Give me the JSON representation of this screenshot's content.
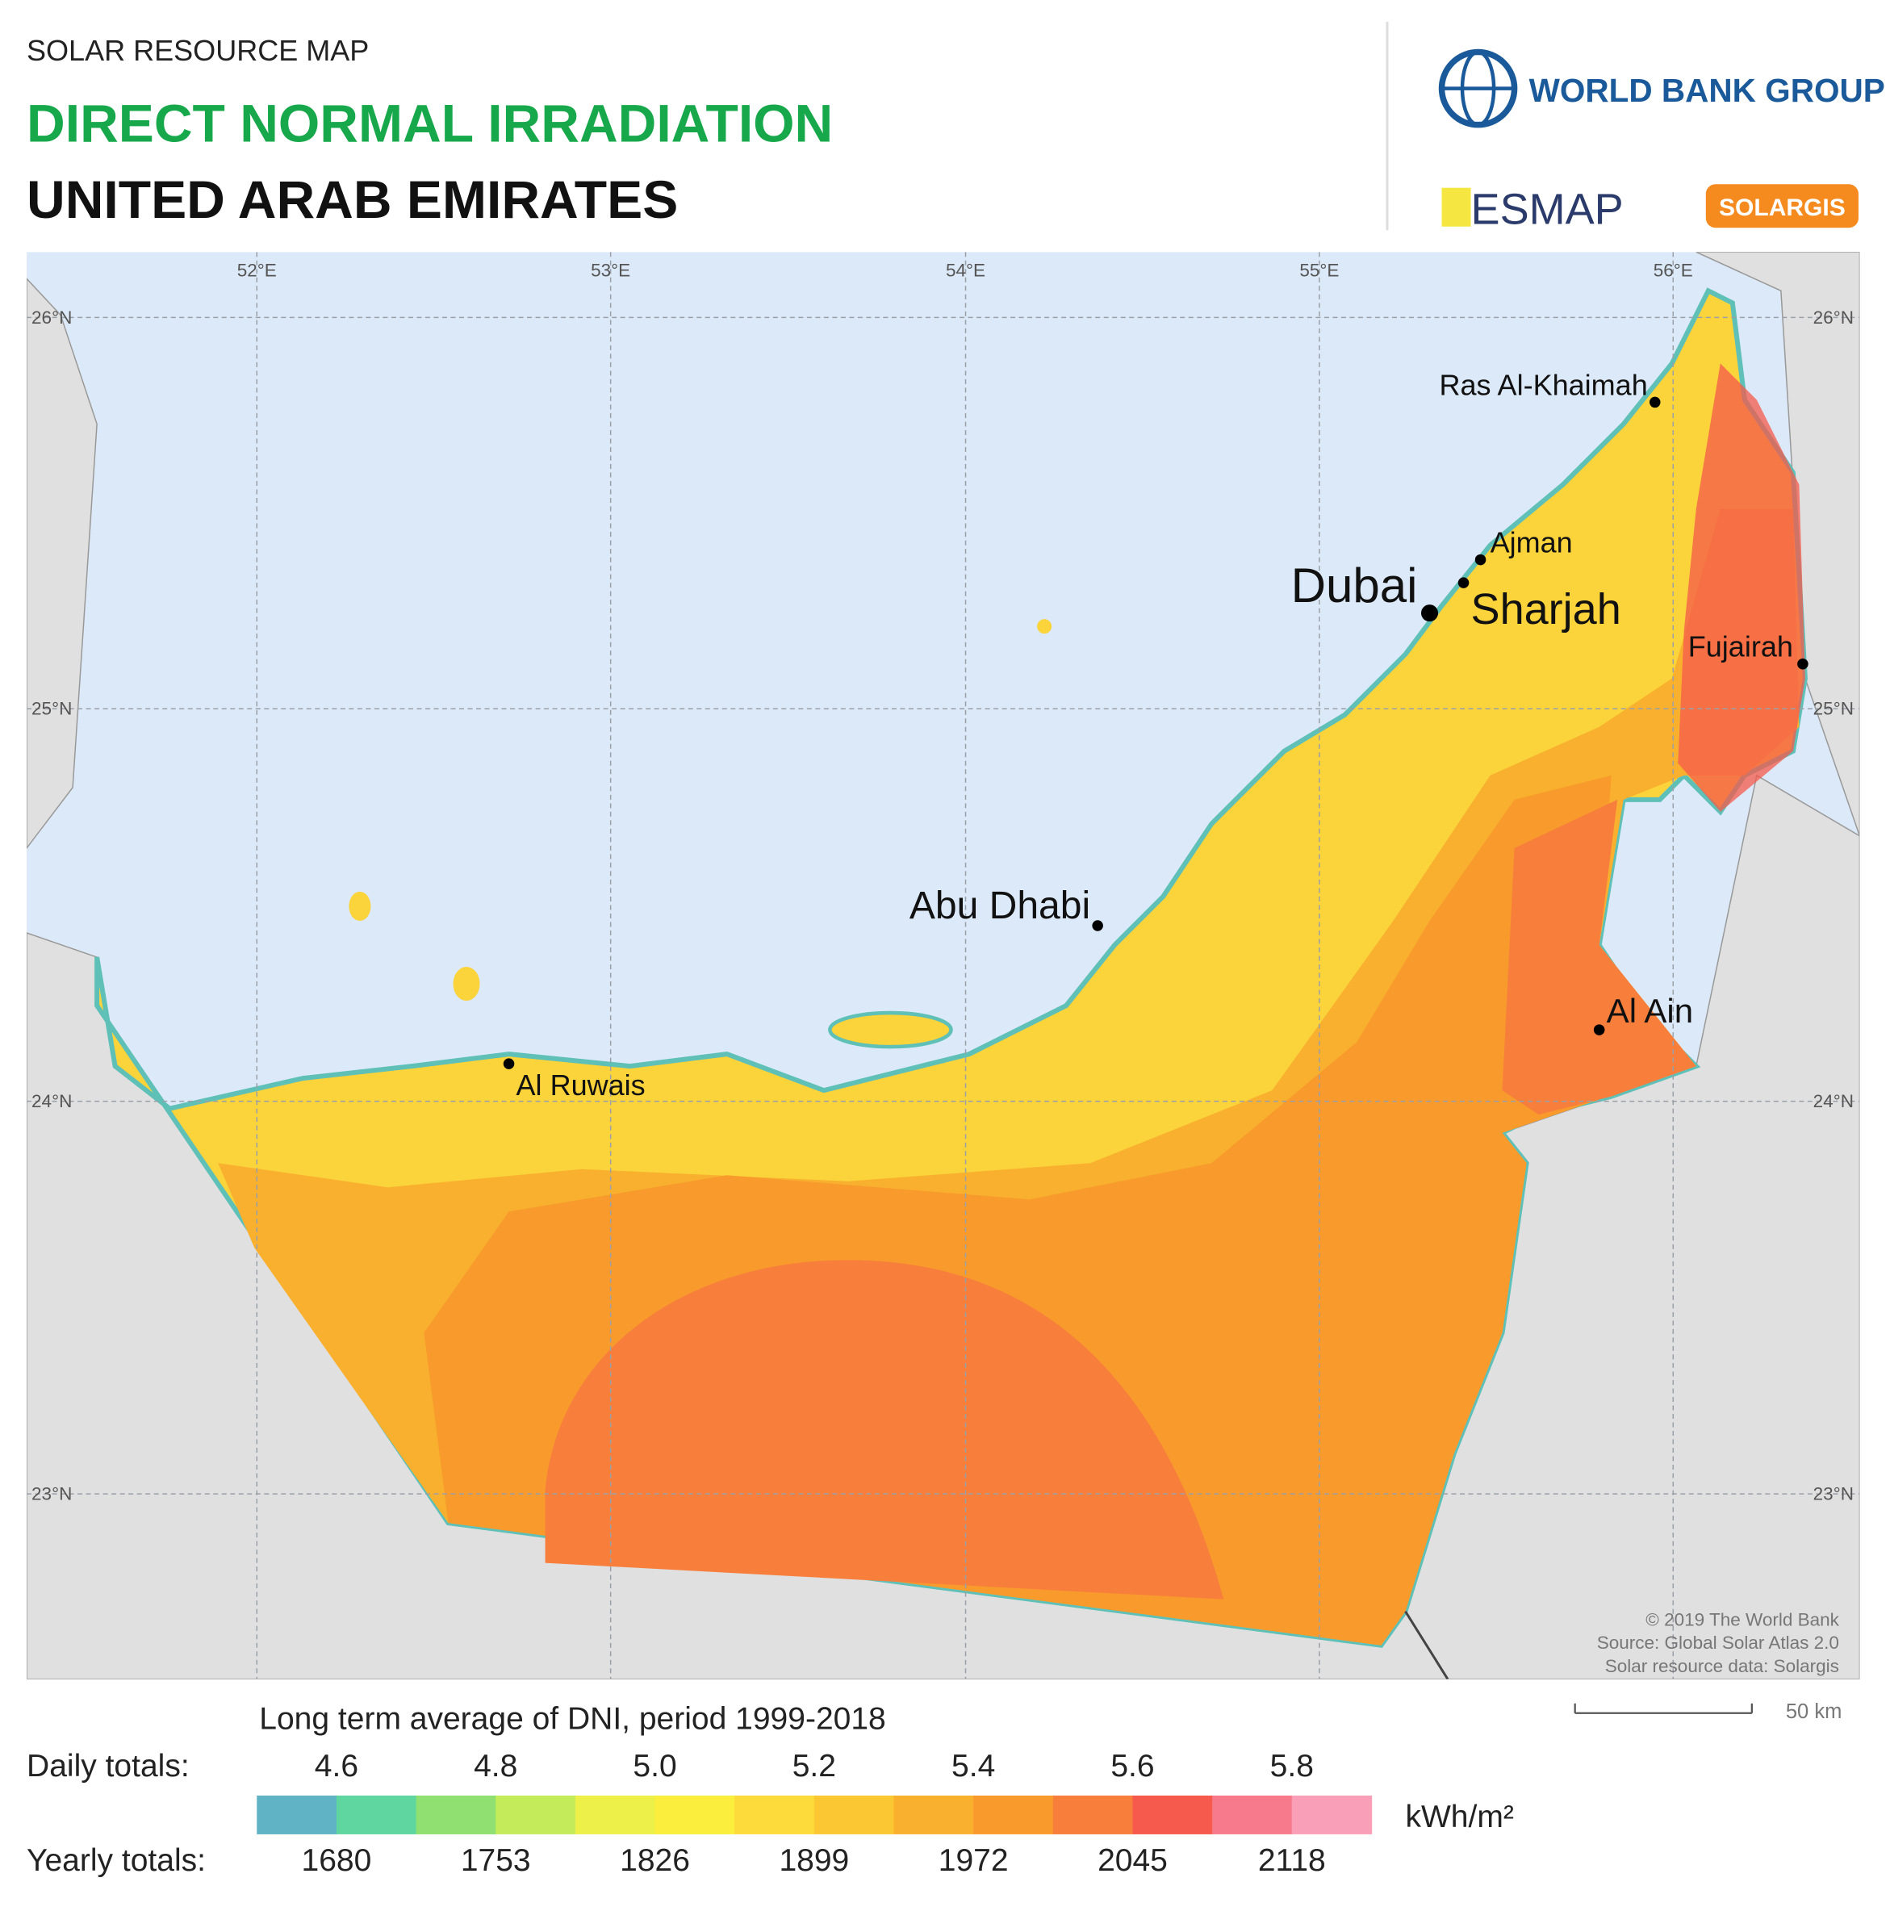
{
  "header": {
    "subtitle": "SOLAR RESOURCE MAP",
    "title": "DIRECT NORMAL IRRADIATION",
    "country": "UNITED ARAB EMIRATES"
  },
  "logos": {
    "world_bank": "WORLD BANK GROUP",
    "esmap": "ESMAP",
    "solargis": "SOLARGIS"
  },
  "map": {
    "longitudes": [
      "52°E",
      "53°E",
      "54°E",
      "55°E",
      "56°E"
    ],
    "latitudes": [
      "26°N",
      "25°N",
      "24°N",
      "23°N"
    ],
    "cities": [
      "Ras Al-Khaimah",
      "Ajman",
      "Dubai",
      "Sharjah",
      "Fujairah",
      "Abu Dhabi",
      "Al Ain",
      "Al Ruwais"
    ],
    "credits": [
      "© 2019 The World Bank",
      "Source: Global Solar Atlas 2.0",
      "Solar resource data: Solargis"
    ],
    "scale": "50 km"
  },
  "legend": {
    "title": "Long term average of DNI, period 1999-2018",
    "daily_label": "Daily totals:",
    "daily": [
      "4.6",
      "4.8",
      "5.0",
      "5.2",
      "5.4",
      "5.6",
      "5.8"
    ],
    "yearly_label": "Yearly totals:",
    "yearly": [
      1680,
      1753,
      1826,
      1899,
      1972,
      2045,
      2118
    ],
    "unit": "kWh/m²",
    "colors": [
      "#5fb3c4",
      "#5fd6a0",
      "#8fe070",
      "#c4ec5a",
      "#eef04a",
      "#fbee3c",
      "#fcdb3a",
      "#fbc733",
      "#f9b02e",
      "#f89a2c",
      "#f87e3c",
      "#f65a4c",
      "#f77a8c",
      "#f9a0b8"
    ]
  }
}
